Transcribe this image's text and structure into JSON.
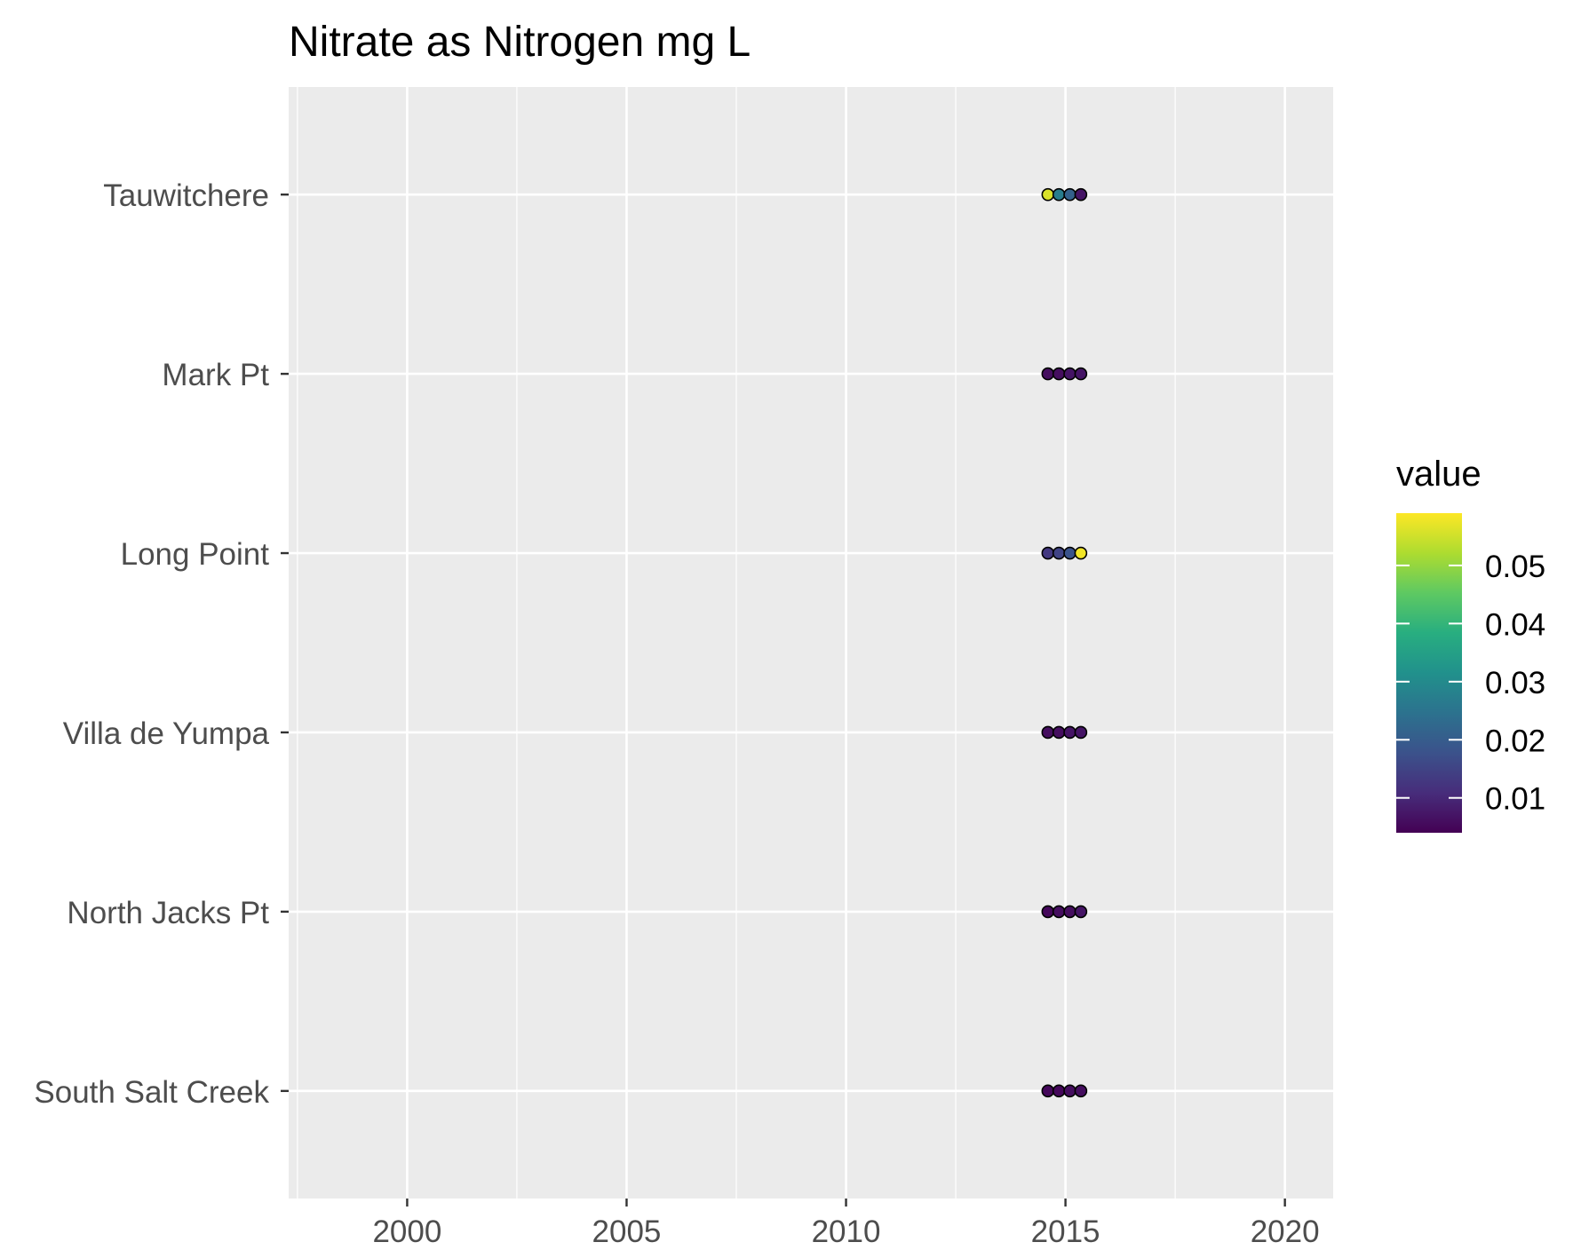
{
  "chart_data": {
    "type": "scatter",
    "title": "Nitrate as Nitrogen mg L",
    "xlabel": "",
    "ylabel": "",
    "xlim": [
      1997.3,
      2021.1
    ],
    "x_ticks": [
      2000,
      2005,
      2010,
      2015,
      2020
    ],
    "x_tick_labels": [
      "2000",
      "2005",
      "2010",
      "2015",
      "2020"
    ],
    "categories": [
      "South Salt Creek",
      "North Jacks Pt",
      "Villa de Yumpa",
      "Long Point",
      "Mark Pt",
      "Tauwitchere"
    ],
    "grid": true,
    "background": "#ebebeb",
    "legend": {
      "title": "value",
      "placement": "right",
      "colorscale": "viridis",
      "range": [
        0.004,
        0.059
      ],
      "ticks": [
        0.01,
        0.02,
        0.03,
        0.04,
        0.05
      ],
      "tick_labels": [
        "0.01",
        "0.02",
        "0.03",
        "0.04",
        "0.05"
      ]
    },
    "series": [
      {
        "category": "Tauwitchere",
        "points": [
          {
            "x": 2014.6,
            "value": 0.056
          },
          {
            "x": 2014.85,
            "value": 0.027
          },
          {
            "x": 2015.1,
            "value": 0.021
          },
          {
            "x": 2015.35,
            "value": 0.007
          }
        ]
      },
      {
        "category": "Mark Pt",
        "points": [
          {
            "x": 2014.6,
            "value": 0.006
          },
          {
            "x": 2014.85,
            "value": 0.006
          },
          {
            "x": 2015.1,
            "value": 0.007
          },
          {
            "x": 2015.35,
            "value": 0.007
          }
        ]
      },
      {
        "category": "Long Point",
        "points": [
          {
            "x": 2014.6,
            "value": 0.013
          },
          {
            "x": 2014.85,
            "value": 0.015
          },
          {
            "x": 2015.1,
            "value": 0.018
          },
          {
            "x": 2015.35,
            "value": 0.058
          }
        ]
      },
      {
        "category": "Villa de Yumpa",
        "points": [
          {
            "x": 2014.6,
            "value": 0.006
          },
          {
            "x": 2014.85,
            "value": 0.006
          },
          {
            "x": 2015.1,
            "value": 0.007
          },
          {
            "x": 2015.35,
            "value": 0.007
          }
        ]
      },
      {
        "category": "North Jacks Pt",
        "points": [
          {
            "x": 2014.6,
            "value": 0.005
          },
          {
            "x": 2014.85,
            "value": 0.006
          },
          {
            "x": 2015.1,
            "value": 0.006
          },
          {
            "x": 2015.35,
            "value": 0.007
          }
        ]
      },
      {
        "category": "South Salt Creek",
        "points": [
          {
            "x": 2014.6,
            "value": 0.005
          },
          {
            "x": 2014.85,
            "value": 0.005
          },
          {
            "x": 2015.1,
            "value": 0.006
          },
          {
            "x": 2015.35,
            "value": 0.006
          }
        ]
      }
    ]
  }
}
